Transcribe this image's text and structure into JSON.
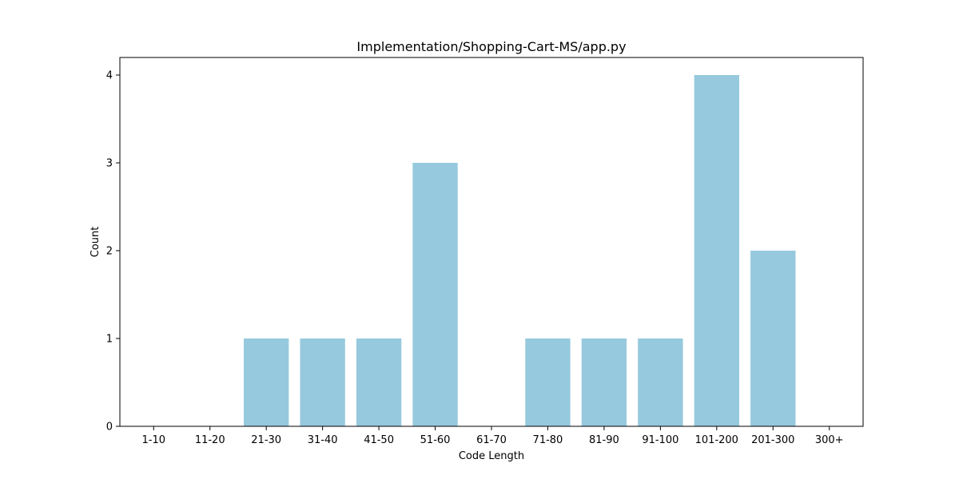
{
  "chart_data": {
    "type": "bar",
    "title": "Implementation/Shopping-Cart-MS/app.py",
    "xlabel": "Code Length",
    "ylabel": "Count",
    "categories": [
      "1-10",
      "11-20",
      "21-30",
      "31-40",
      "41-50",
      "51-60",
      "61-70",
      "71-80",
      "81-90",
      "91-100",
      "101-200",
      "201-300",
      "300+"
    ],
    "values": [
      0,
      0,
      1,
      1,
      1,
      3,
      0,
      1,
      1,
      1,
      4,
      2,
      0
    ],
    "ylim": [
      0,
      4.2
    ],
    "yticks": [
      0,
      1,
      2,
      3,
      4
    ],
    "bar_color": "#96c9dd",
    "grid": false,
    "legend": "none"
  }
}
